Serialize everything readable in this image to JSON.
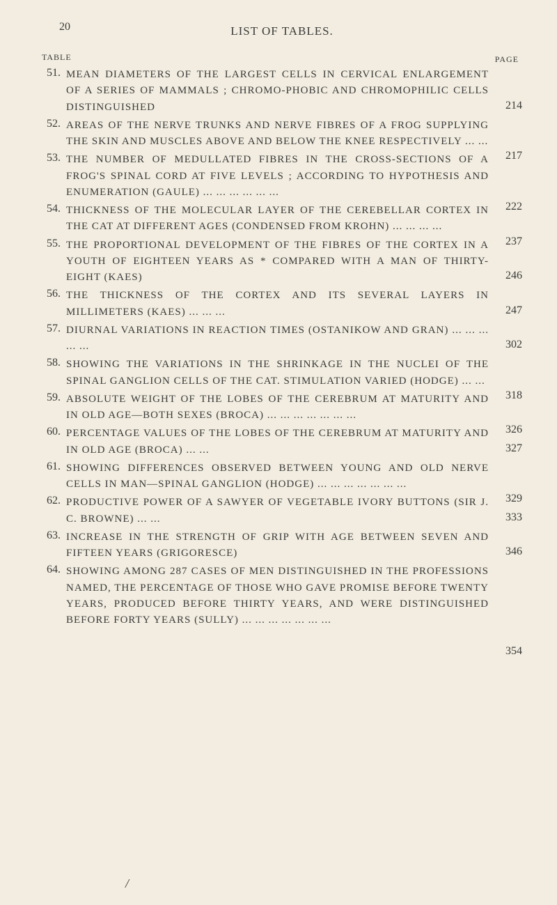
{
  "page_number_top": "20",
  "header_title": "LIST OF TABLES.",
  "table_label": "TABLE",
  "page_label": "PAGE",
  "colors": {
    "background": "#f2ede0",
    "text": "#3a3a3a"
  },
  "typography": {
    "body_fontsize": 15,
    "header_fontsize": 17,
    "label_fontsize": 12
  },
  "entries": [
    {
      "number": "51.",
      "text": "MEAN DIAMETERS OF THE LARGEST CELLS IN CERVICAL ENLARGEMENT OF A SERIES OF MAMMALS ; CHROMO-PHOBIC AND CHROMOPHILIC CELLS DISTINGUISHED",
      "page": "214",
      "page_line": 3
    },
    {
      "number": "52.",
      "text": "AREAS OF THE NERVE TRUNKS AND NERVE FIBRES OF A FROG SUPPLYING THE SKIN AND MUSCLES ABOVE AND BELOW THE KNEE RESPECTIVELY ... ...",
      "page": "217",
      "page_line": 3
    },
    {
      "number": "53.",
      "text": "THE NUMBER OF MEDULLATED FIBRES IN THE CROSS-SECTIONS OF A FROG'S SPINAL CORD AT FIVE LEVELS ; ACCORDING TO HYPOTHESIS AND ENUMERATION (GAULE) ... ... ... ... ... ...",
      "page": "222",
      "page_line": 4
    },
    {
      "number": "54.",
      "text": "THICKNESS OF THE MOLECULAR LAYER OF THE CEREBELLAR CORTEX IN THE CAT AT DIFFERENT AGES (CONDENSED FROM KROHN) ... ... ... ...",
      "page": "237",
      "page_line": 3
    },
    {
      "number": "55.",
      "text": "THE PROPORTIONAL DEVELOPMENT OF THE FIBRES OF THE CORTEX IN A YOUTH OF EIGHTEEN YEARS AS * COMPARED WITH A MAN OF THIRTY-EIGHT (KAES)",
      "page": "246",
      "page_line": 3
    },
    {
      "number": "56.",
      "text": "THE THICKNESS OF THE CORTEX AND ITS SEVERAL LAYERS IN MILLIMETERS (KAES) ... ... ...",
      "page": "247",
      "page_line": 2
    },
    {
      "number": "57.",
      "text": "DIURNAL VARIATIONS IN REACTION TIMES (OSTANIKOW AND GRAN) ... ... ... ... ...",
      "page": "302",
      "page_line": 2
    },
    {
      "number": "58.",
      "text": "SHOWING THE VARIATIONS IN THE SHRINKAGE IN THE NUCLEI OF THE SPINAL GANGLION CELLS OF THE CAT. STIMULATION VARIED (HODGE) ... ...",
      "page": "318",
      "page_line": 3
    },
    {
      "number": "59.",
      "text": "ABSOLUTE WEIGHT OF THE LOBES OF THE CEREBRUM AT MATURITY AND IN OLD AGE—BOTH SEXES (BROCA) ... ... ... ... ... ... ...",
      "page": "326",
      "page_line": 3
    },
    {
      "number": "60.",
      "text": "PERCENTAGE VALUES OF THE LOBES OF THE CEREBRUM AT MATURITY AND IN OLD AGE (BROCA) ... ...",
      "page": "327",
      "page_line": 2
    },
    {
      "number": "61.",
      "text": "SHOWING DIFFERENCES OBSERVED BETWEEN YOUNG AND OLD NERVE CELLS IN MAN—SPINAL GANGLION (HODGE) ... ... ... ... ... ... ...",
      "page": "329",
      "page_line": 3
    },
    {
      "number": "62.",
      "text": "PRODUCTIVE POWER OF A SAWYER OF VEGETABLE IVORY BUTTONS (SIR J. C. BROWNE) ... ...",
      "page": "333",
      "page_line": 2
    },
    {
      "number": "63.",
      "text": "INCREASE IN THE STRENGTH OF GRIP WITH AGE BETWEEN SEVEN AND FIFTEEN YEARS (GRIGORESCE)",
      "page": "346",
      "page_line": 2
    },
    {
      "number": "64.",
      "text": "SHOWING AMONG 287 CASES OF MEN DISTINGUISHED IN THE PROFESSIONS NAMED, THE PERCENTAGE OF THOSE WHO GAVE PROMISE BEFORE TWENTY YEARS, PRODUCED BEFORE THIRTY YEARS, AND WERE DISTINGUISHED BEFORE FORTY YEARS (SULLY) ... ... ... ... ... ... ...",
      "page": "354",
      "page_line": 6
    }
  ],
  "slash_mark": "/"
}
